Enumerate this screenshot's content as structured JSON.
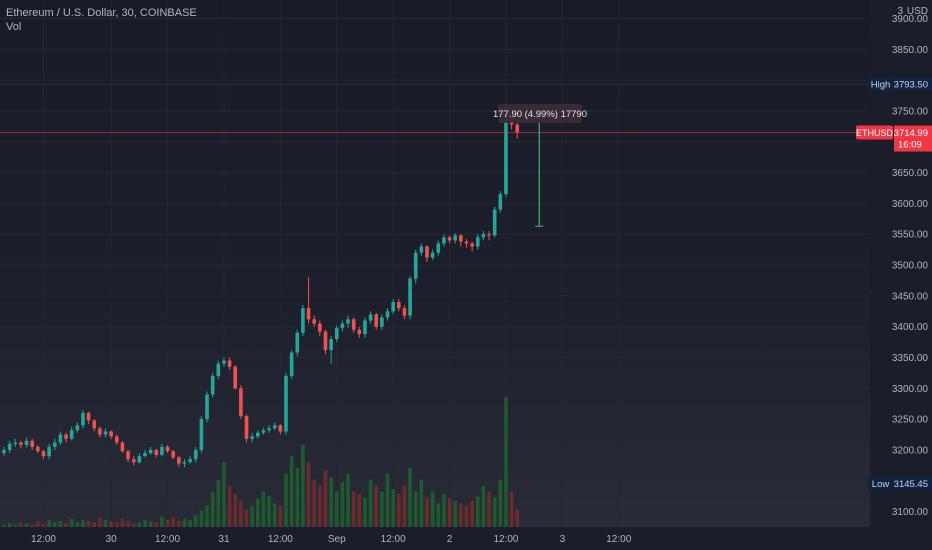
{
  "legend": {
    "title": "Ethereum / U.S. Dollar, 30, COINBASE",
    "indicator": "Vol"
  },
  "axis_unit_label": "USD",
  "axis_corner_digit": "3",
  "measure_tooltip": "177.90 (4.99%) 17790",
  "markers": {
    "high_label": "High",
    "high_value": "3793.50",
    "low_label": "Low",
    "low_value": "3145.45",
    "symbol_label": "ETHUSD",
    "last_value": "3714.99",
    "countdown": "16:09"
  },
  "colors": {
    "up": "#26a69a",
    "down": "#ef5350",
    "vol_up": "#1d5a2d",
    "vol_down": "#6b2a2c",
    "price_line": "#f23645",
    "high_low_bg": "#0f2342"
  },
  "chart_data": {
    "type": "candlestick",
    "symbol": "ETHUSD",
    "timeframe": "30",
    "exchange": "COINBASE",
    "ylim": [
      3075,
      3930
    ],
    "yticks": [
      3100,
      3150,
      3200,
      3250,
      3300,
      3350,
      3400,
      3450,
      3500,
      3550,
      3600,
      3650,
      3700,
      3750,
      3800,
      3850,
      3900
    ],
    "xticks": [
      "12:00",
      "30",
      "12:00",
      "31",
      "12:00",
      "Sep",
      "12:00",
      "2",
      "12:00",
      "3",
      "12:00"
    ],
    "x_tick_bar_index": [
      7,
      19,
      29,
      39,
      49,
      59,
      69,
      79,
      89,
      99,
      109
    ],
    "close": [
      3200,
      3210,
      3212,
      3208,
      3215,
      3205,
      3198,
      3190,
      3205,
      3212,
      3225,
      3218,
      3232,
      3240,
      3260,
      3248,
      3235,
      3225,
      3230,
      3222,
      3212,
      3198,
      3185,
      3180,
      3190,
      3195,
      3200,
      3192,
      3205,
      3198,
      3188,
      3178,
      3180,
      3185,
      3200,
      3250,
      3290,
      3320,
      3340,
      3345,
      3335,
      3300,
      3255,
      3218,
      3222,
      3228,
      3232,
      3235,
      3240,
      3230,
      3320,
      3358,
      3390,
      3430,
      3412,
      3405,
      3392,
      3362,
      3380,
      3398,
      3405,
      3412,
      3395,
      3388,
      3410,
      3420,
      3400,
      3415,
      3425,
      3440,
      3430,
      3418,
      3478,
      3520,
      3530,
      3512,
      3520,
      3535,
      3545,
      3540,
      3548,
      3538,
      3535,
      3530,
      3545,
      3550,
      3548,
      3590,
      3615,
      3745,
      3728,
      3715
    ],
    "open": [
      3195,
      3200,
      3210,
      3212,
      3208,
      3215,
      3205,
      3198,
      3190,
      3205,
      3212,
      3225,
      3218,
      3232,
      3240,
      3260,
      3248,
      3235,
      3225,
      3230,
      3222,
      3212,
      3198,
      3185,
      3180,
      3190,
      3195,
      3200,
      3192,
      3205,
      3198,
      3188,
      3178,
      3180,
      3185,
      3200,
      3250,
      3290,
      3320,
      3340,
      3345,
      3335,
      3300,
      3255,
      3218,
      3222,
      3228,
      3232,
      3235,
      3240,
      3230,
      3320,
      3358,
      3390,
      3430,
      3412,
      3405,
      3392,
      3362,
      3380,
      3398,
      3405,
      3412,
      3395,
      3388,
      3410,
      3420,
      3400,
      3415,
      3425,
      3440,
      3430,
      3418,
      3478,
      3520,
      3530,
      3512,
      3520,
      3535,
      3545,
      3540,
      3548,
      3538,
      3535,
      3530,
      3545,
      3550,
      3548,
      3590,
      3615,
      3745,
      3728
    ],
    "high": [
      3205,
      3215,
      3218,
      3215,
      3220,
      3218,
      3208,
      3200,
      3210,
      3218,
      3230,
      3228,
      3238,
      3245,
      3265,
      3262,
      3250,
      3238,
      3235,
      3232,
      3225,
      3215,
      3200,
      3190,
      3195,
      3200,
      3205,
      3202,
      3210,
      3208,
      3200,
      3190,
      3185,
      3190,
      3205,
      3255,
      3295,
      3325,
      3345,
      3350,
      3350,
      3338,
      3305,
      3258,
      3228,
      3232,
      3236,
      3240,
      3245,
      3242,
      3325,
      3362,
      3395,
      3435,
      3480,
      3418,
      3410,
      3395,
      3385,
      3402,
      3410,
      3418,
      3415,
      3400,
      3415,
      3425,
      3422,
      3420,
      3430,
      3445,
      3445,
      3435,
      3482,
      3525,
      3535,
      3532,
      3525,
      3540,
      3550,
      3548,
      3552,
      3550,
      3542,
      3538,
      3550,
      3555,
      3555,
      3595,
      3620,
      3750,
      3748,
      3730
    ],
    "low": [
      3190,
      3195,
      3205,
      3203,
      3204,
      3200,
      3195,
      3185,
      3185,
      3200,
      3208,
      3212,
      3215,
      3228,
      3235,
      3242,
      3230,
      3220,
      3220,
      3218,
      3208,
      3195,
      3180,
      3175,
      3178,
      3188,
      3192,
      3188,
      3190,
      3195,
      3185,
      3172,
      3172,
      3178,
      3180,
      3195,
      3245,
      3285,
      3315,
      3335,
      3330,
      3298,
      3250,
      3212,
      3212,
      3218,
      3225,
      3228,
      3232,
      3225,
      3225,
      3315,
      3352,
      3385,
      3405,
      3400,
      3385,
      3355,
      3340,
      3375,
      3392,
      3398,
      3390,
      3382,
      3382,
      3405,
      3395,
      3395,
      3410,
      3420,
      3425,
      3412,
      3412,
      3470,
      3515,
      3505,
      3508,
      3515,
      3530,
      3535,
      3535,
      3530,
      3528,
      3522,
      3525,
      3540,
      3540,
      3545,
      3585,
      3610,
      3720,
      3705
    ],
    "volume": [
      2,
      3,
      2,
      4,
      3,
      2,
      5,
      3,
      6,
      4,
      5,
      3,
      7,
      4,
      6,
      5,
      4,
      8,
      6,
      5,
      4,
      7,
      5,
      3,
      4,
      6,
      5,
      4,
      9,
      6,
      8,
      5,
      7,
      6,
      10,
      14,
      18,
      30,
      40,
      55,
      35,
      28,
      22,
      15,
      18,
      24,
      30,
      26,
      20,
      18,
      45,
      60,
      50,
      70,
      55,
      40,
      35,
      48,
      42,
      30,
      38,
      45,
      30,
      28,
      25,
      40,
      35,
      30,
      45,
      32,
      28,
      35,
      50,
      30,
      40,
      25,
      30,
      20,
      28,
      24,
      22,
      20,
      18,
      22,
      26,
      35,
      30,
      25,
      40,
      110,
      30,
      15
    ]
  }
}
